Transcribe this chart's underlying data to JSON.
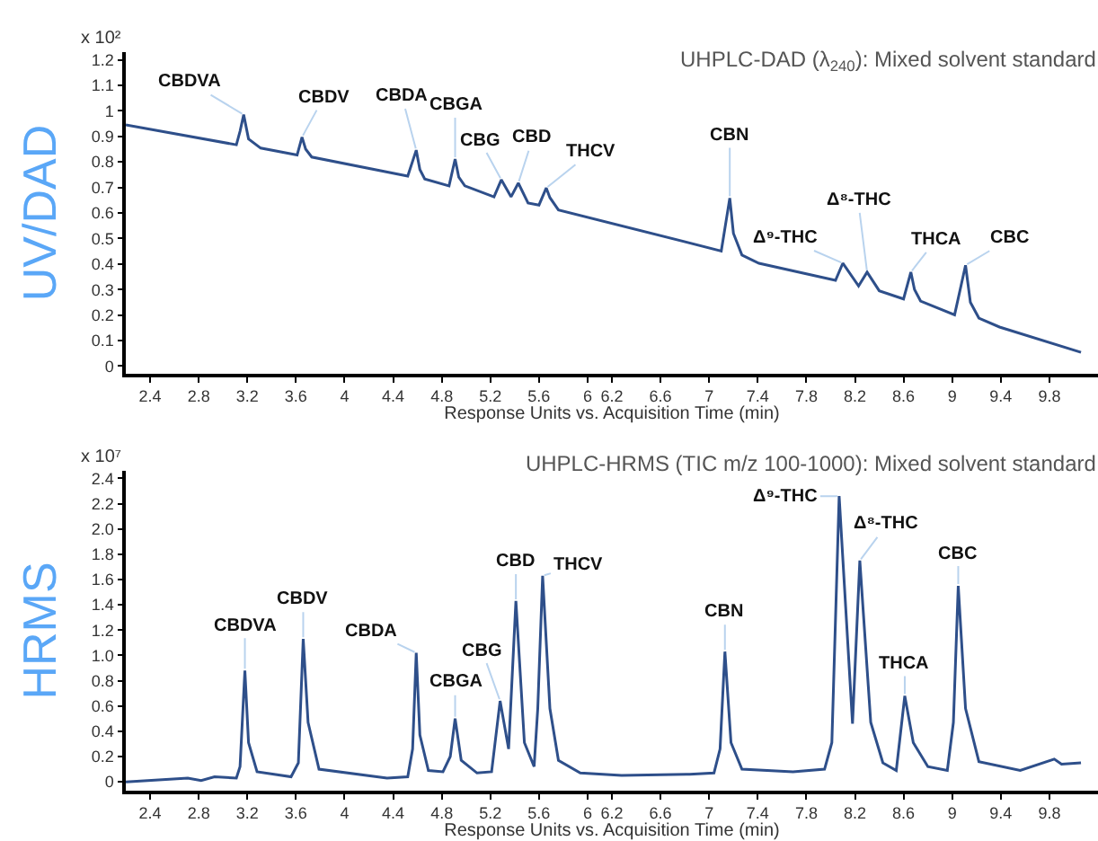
{
  "chart_data": [
    {
      "type": "line",
      "title": "UHPLC-DAD (λ$_{240}$): Mixed solvent standard",
      "xlabel": "Response Units vs. Acquisition Time (min)",
      "ylabel": "UV/DAD",
      "x": [
        2.2,
        3.11,
        3.14,
        3.17,
        3.21,
        3.31,
        3.61,
        3.65,
        3.68,
        3.73,
        4.52,
        4.59,
        4.62,
        4.66,
        4.86,
        4.91,
        4.94,
        4.99,
        5.23,
        5.29,
        5.37,
        5.43,
        5.51,
        5.6,
        5.66,
        5.69,
        5.76,
        7.1,
        7.17,
        7.2,
        7.27,
        7.41,
        8.04,
        8.1,
        8.23,
        8.3,
        8.4,
        8.6,
        8.66,
        8.69,
        8.74,
        9.02,
        9.11,
        9.15,
        9.22,
        9.39,
        10.06
      ],
      "series": [
        {
          "color": "#2e4f8a",
          "values": [
            0.945,
            0.867,
            0.92,
            0.985,
            0.89,
            0.854,
            0.827,
            0.897,
            0.85,
            0.819,
            0.744,
            0.846,
            0.77,
            0.733,
            0.706,
            0.811,
            0.74,
            0.706,
            0.663,
            0.73,
            0.663,
            0.717,
            0.639,
            0.631,
            0.698,
            0.66,
            0.612,
            0.451,
            0.658,
            0.52,
            0.435,
            0.403,
            0.336,
            0.403,
            0.314,
            0.368,
            0.295,
            0.263,
            0.368,
            0.3,
            0.255,
            0.201,
            0.395,
            0.25,
            0.188,
            0.153,
            0.054
          ]
        }
      ],
      "xlim": [
        2.2,
        10.2
      ],
      "ylim": [
        -0.03,
        1.23
      ],
      "xticks": [
        2.4,
        2.8,
        3.2,
        3.6,
        4,
        4.4,
        4.8,
        5.2,
        5.6,
        6,
        6.2,
        6.6,
        7,
        7.4,
        7.8,
        8.2,
        8.6,
        9,
        9.4,
        9.8
      ],
      "yticks": [
        0,
        0.1,
        0.2,
        0.3,
        0.4,
        0.5,
        0.6,
        0.7,
        0.8,
        0.9,
        1,
        1.1,
        1.2
      ],
      "grid": false,
      "marker": "none",
      "line_style": "solid",
      "annotations": [
        "x 10²",
        {
          "text": "CBDVA",
          "x": 3.17,
          "y": 0.985
        },
        {
          "text": "CBDV",
          "x": 3.65,
          "y": 0.897
        },
        {
          "text": "CBDA",
          "x": 4.59,
          "y": 0.846
        },
        {
          "text": "CBGA",
          "x": 4.91,
          "y": 0.811
        },
        {
          "text": "CBG",
          "x": 5.29,
          "y": 0.73
        },
        {
          "text": "CBD",
          "x": 5.43,
          "y": 0.717
        },
        {
          "text": "THCV",
          "x": 5.66,
          "y": 0.698
        },
        {
          "text": "CBN",
          "x": 7.17,
          "y": 0.658
        },
        {
          "text": "Δ⁹-THC",
          "x": 8.1,
          "y": 0.403
        },
        {
          "text": "Δ⁸-THC",
          "x": 8.3,
          "y": 0.368
        },
        {
          "text": "THCA",
          "x": 8.66,
          "y": 0.368
        },
        {
          "text": "CBC",
          "x": 9.11,
          "y": 0.395
        }
      ]
    },
    {
      "type": "line",
      "title": "UHPLC-HRMS (TIC m/z 100-1000): Mixed solvent standard",
      "xlabel": "Response Units vs. Acquisition Time (min)",
      "ylabel": "HRMS",
      "x": [
        2.2,
        2.71,
        2.82,
        2.93,
        3.11,
        3.14,
        3.18,
        3.21,
        3.28,
        3.56,
        3.62,
        3.66,
        3.7,
        3.79,
        4.35,
        4.52,
        4.56,
        4.59,
        4.62,
        4.69,
        4.81,
        4.87,
        4.91,
        4.96,
        5.09,
        5.21,
        5.28,
        5.35,
        5.41,
        5.48,
        5.56,
        5.59,
        5.63,
        5.69,
        5.76,
        5.94,
        6.28,
        6.84,
        7.04,
        7.09,
        7.13,
        7.18,
        7.27,
        7.69,
        7.95,
        8.01,
        8.07,
        8.18,
        8.24,
        8.33,
        8.43,
        8.54,
        8.61,
        8.68,
        8.8,
        8.96,
        9.01,
        9.05,
        9.11,
        9.22,
        9.56,
        9.84,
        9.9,
        10.06
      ],
      "series": [
        {
          "color": "#2e4f8a",
          "values": [
            0.0,
            0.03,
            0.01,
            0.04,
            0.03,
            0.12,
            0.88,
            0.31,
            0.08,
            0.04,
            0.15,
            1.13,
            0.47,
            0.1,
            0.03,
            0.04,
            0.26,
            1.02,
            0.37,
            0.09,
            0.08,
            0.2,
            0.5,
            0.17,
            0.07,
            0.08,
            0.64,
            0.26,
            1.43,
            0.31,
            0.12,
            0.58,
            1.63,
            0.58,
            0.17,
            0.07,
            0.05,
            0.06,
            0.07,
            0.26,
            1.03,
            0.31,
            0.1,
            0.08,
            0.1,
            0.31,
            2.26,
            0.46,
            1.75,
            0.47,
            0.15,
            0.09,
            0.68,
            0.31,
            0.12,
            0.09,
            0.47,
            1.55,
            0.58,
            0.16,
            0.09,
            0.18,
            0.14,
            0.15
          ]
        }
      ],
      "xlim": [
        2.2,
        10.2
      ],
      "ylim": [
        -0.07,
        2.46
      ],
      "xticks": [
        2.4,
        2.8,
        3.2,
        3.6,
        4,
        4.4,
        4.8,
        5.2,
        5.6,
        6,
        6.2,
        6.6,
        7,
        7.4,
        7.8,
        8.2,
        8.6,
        9,
        9.4,
        9.8
      ],
      "yticks": [
        0,
        0.2,
        0.4,
        0.6,
        0.8,
        {
          "value": 1,
          "label": "1.0"
        },
        1.2,
        1.4,
        1.6,
        1.8,
        {
          "value": 2,
          "label": "2.0"
        },
        2.2,
        2.4
      ],
      "grid": false,
      "marker": "none",
      "line_style": "solid",
      "annotations": [
        "x 10⁷",
        {
          "text": "CBDVA",
          "x": 3.18,
          "y": 0.88
        },
        {
          "text": "CBDV",
          "x": 3.66,
          "y": 1.13
        },
        {
          "text": "CBDA",
          "x": 4.59,
          "y": 1.02
        },
        {
          "text": "CBGA",
          "x": 4.91,
          "y": 0.5
        },
        {
          "text": "CBG",
          "x": 5.28,
          "y": 0.64
        },
        {
          "text": "CBD",
          "x": 5.41,
          "y": 1.43
        },
        {
          "text": "THCV",
          "x": 5.63,
          "y": 1.63
        },
        {
          "text": "CBN",
          "x": 7.13,
          "y": 1.03
        },
        {
          "text": "Δ⁹-THC",
          "x": 8.07,
          "y": 2.26
        },
        {
          "text": "Δ⁸-THC",
          "x": 8.24,
          "y": 1.75
        },
        {
          "text": "THCA",
          "x": 8.61,
          "y": 0.68
        },
        {
          "text": "CBC",
          "x": 9.05,
          "y": 1.55
        }
      ]
    }
  ]
}
